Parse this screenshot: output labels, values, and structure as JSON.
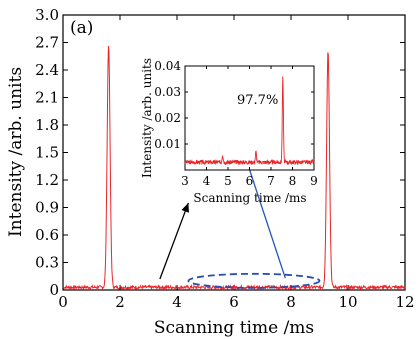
{
  "chart_data": [
    {
      "type": "line",
      "panel_label": "(a)",
      "xlabel": "Scanning time /ms",
      "ylabel": "Intensity /arb. units",
      "xlim": [
        0,
        12
      ],
      "ylim": [
        0,
        3.0
      ],
      "xticks": [
        0,
        2,
        4,
        6,
        8,
        10,
        12
      ],
      "yticks": [
        0,
        0.3,
        0.6,
        0.9,
        1.2,
        1.5,
        1.8,
        2.1,
        2.4,
        2.7,
        3.0
      ],
      "xtick_labels": [
        "0",
        "2",
        "4",
        "6",
        "8",
        "10",
        "12"
      ],
      "ytick_labels": [
        "0",
        "0.3",
        "0.6",
        "0.9",
        "1.2",
        "1.5",
        "1.8",
        "2.1",
        "2.4",
        "2.7",
        "3.0"
      ],
      "grid": false,
      "series": [
        {
          "color": "#e8262a",
          "baseline": 0.03,
          "peaks": [
            {
              "x": 1.6,
              "y": 2.68
            },
            {
              "x": 9.3,
              "y": 2.62
            }
          ]
        }
      ],
      "annotations": [
        {
          "type": "dashed-ellipse",
          "color": "#2a4db0",
          "x_range": [
            4.4,
            9.0
          ],
          "y_center": 0.1
        },
        {
          "type": "arrow",
          "color": "#000000",
          "from": [
            3.4,
            0.12
          ],
          "to": [
            4.4,
            0.95
          ]
        },
        {
          "type": "arrow",
          "color": "#2255bb",
          "from": [
            7.8,
            0.13
          ],
          "to": [
            6.4,
            1.45
          ]
        }
      ]
    },
    {
      "type": "line",
      "inset": true,
      "xlabel": "Scanning time /ms",
      "ylabel": "Intensity /arb. units",
      "annotation": "97.7%",
      "xlim": [
        3,
        9
      ],
      "ylim": [
        0,
        0.04
      ],
      "xticks": [
        3,
        4,
        5,
        6,
        7,
        8,
        9
      ],
      "yticks": [
        0.01,
        0.02,
        0.03,
        0.04
      ],
      "xtick_labels": [
        "3",
        "4",
        "5",
        "6",
        "7",
        "8",
        "9"
      ],
      "ytick_labels": [
        "0.01",
        "0.02",
        "0.03",
        "0.04"
      ],
      "grid": false,
      "series": [
        {
          "color": "#e8262a",
          "baseline": 0.003,
          "peaks": [
            {
              "x": 4.75,
              "y": 0.006
            },
            {
              "x": 6.3,
              "y": 0.007
            },
            {
              "x": 7.55,
              "y": 0.036
            }
          ]
        }
      ]
    }
  ]
}
